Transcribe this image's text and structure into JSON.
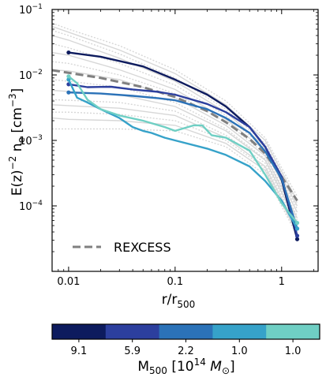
{
  "chart_data": {
    "type": "line",
    "xscale": "log",
    "yscale": "log",
    "xlim": [
      0.007,
      2.2
    ],
    "ylim": [
      1e-05,
      0.1
    ],
    "grid": false,
    "xlabel": {
      "base": "r/r",
      "sub": "500"
    },
    "ylabel": {
      "pre": "E(z)",
      "sup1": "−2",
      "mid": " n",
      "sub": "e",
      "post": " [cm",
      "sup2": "−3",
      "end": "]"
    },
    "xticks": [
      {
        "value": 0.01,
        "label": "0.01"
      },
      {
        "value": 0.1,
        "label": "0.1"
      },
      {
        "value": 1,
        "label": "1"
      }
    ],
    "yticks": [
      {
        "value": 0.1,
        "base": "10",
        "exp": "−1"
      },
      {
        "value": 0.01,
        "base": "10",
        "exp": "−2"
      },
      {
        "value": 0.001,
        "base": "10",
        "exp": "−3"
      },
      {
        "value": 0.0001,
        "base": "10",
        "exp": "−4"
      }
    ],
    "legend": {
      "label": "REXCESS",
      "position": "lower-left",
      "color": "#808080"
    },
    "reference_mean": {
      "color": "#808080",
      "points": [
        [
          0.007,
          0.0118
        ],
        [
          0.02,
          0.009
        ],
        [
          0.05,
          0.0065
        ],
        [
          0.1,
          0.0046
        ],
        [
          0.2,
          0.0028
        ],
        [
          0.3,
          0.0019
        ],
        [
          0.5,
          0.00105
        ],
        [
          0.7,
          0.00063
        ],
        [
          1.0,
          0.00028
        ],
        [
          1.4,
          0.00012
        ]
      ]
    },
    "rexcess_clusters": {
      "color": "#d3d3d3",
      "curves": [
        [
          [
            0.007,
            0.062
          ],
          [
            0.01,
            0.05
          ],
          [
            0.03,
            0.028
          ],
          [
            0.1,
            0.012
          ],
          [
            0.3,
            0.004
          ],
          [
            0.7,
            0.0011
          ],
          [
            1.4,
            0.00014
          ]
        ],
        [
          [
            0.007,
            0.055
          ],
          [
            0.01,
            0.045
          ],
          [
            0.03,
            0.024
          ],
          [
            0.1,
            0.0105
          ],
          [
            0.3,
            0.0035
          ],
          [
            0.7,
            0.001
          ],
          [
            1.4,
            0.00012
          ]
        ],
        [
          [
            0.007,
            0.048
          ],
          [
            0.01,
            0.04
          ],
          [
            0.03,
            0.021
          ],
          [
            0.1,
            0.009
          ],
          [
            0.3,
            0.003
          ],
          [
            0.7,
            0.0009
          ],
          [
            1.4,
            0.00011
          ]
        ],
        [
          [
            0.007,
            0.04
          ],
          [
            0.01,
            0.034
          ],
          [
            0.03,
            0.018
          ],
          [
            0.1,
            0.008
          ],
          [
            0.3,
            0.0027
          ],
          [
            0.7,
            0.0008
          ],
          [
            1.4,
            0.0001
          ]
        ],
        [
          [
            0.007,
            0.03
          ],
          [
            0.01,
            0.026
          ],
          [
            0.03,
            0.015
          ],
          [
            0.1,
            0.007
          ],
          [
            0.3,
            0.0024
          ],
          [
            0.7,
            0.00075
          ],
          [
            1.4,
            9e-05
          ]
        ],
        [
          [
            0.007,
            0.022
          ],
          [
            0.01,
            0.02
          ],
          [
            0.03,
            0.012
          ],
          [
            0.1,
            0.006
          ],
          [
            0.3,
            0.0021
          ],
          [
            0.7,
            0.0007
          ],
          [
            1.4,
            8e-05
          ]
        ],
        [
          [
            0.007,
            0.016
          ],
          [
            0.01,
            0.015
          ],
          [
            0.03,
            0.01
          ],
          [
            0.1,
            0.0052
          ],
          [
            0.3,
            0.0019
          ],
          [
            0.7,
            0.00062
          ],
          [
            1.4,
            7e-05
          ]
        ],
        [
          [
            0.007,
            0.012
          ],
          [
            0.01,
            0.0115
          ],
          [
            0.03,
            0.0085
          ],
          [
            0.1,
            0.0045
          ],
          [
            0.3,
            0.0017
          ],
          [
            0.7,
            0.00058
          ],
          [
            1.4,
            6.5e-05
          ]
        ],
        [
          [
            0.007,
            0.0085
          ],
          [
            0.01,
            0.008
          ],
          [
            0.03,
            0.0065
          ],
          [
            0.1,
            0.0038
          ],
          [
            0.3,
            0.0015
          ],
          [
            0.7,
            0.00052
          ],
          [
            1.4,
            6e-05
          ]
        ],
        [
          [
            0.007,
            0.0058
          ],
          [
            0.01,
            0.0056
          ],
          [
            0.03,
            0.005
          ],
          [
            0.1,
            0.0033
          ],
          [
            0.3,
            0.0014
          ],
          [
            0.7,
            0.0005
          ],
          [
            1.4,
            5.5e-05
          ]
        ],
        [
          [
            0.007,
            0.0042
          ],
          [
            0.01,
            0.0041
          ],
          [
            0.03,
            0.0038
          ],
          [
            0.1,
            0.0028
          ],
          [
            0.3,
            0.0012
          ],
          [
            0.7,
            0.00045
          ],
          [
            1.4,
            5e-05
          ]
        ],
        [
          [
            0.007,
            0.0035
          ],
          [
            0.01,
            0.0034
          ],
          [
            0.03,
            0.0031
          ],
          [
            0.1,
            0.0024
          ],
          [
            0.3,
            0.0011
          ],
          [
            0.7,
            0.0004
          ],
          [
            1.4,
            4.5e-05
          ]
        ],
        [
          [
            0.007,
            0.0027
          ],
          [
            0.01,
            0.0027
          ],
          [
            0.03,
            0.0025
          ],
          [
            0.1,
            0.002
          ],
          [
            0.3,
            0.001
          ],
          [
            0.7,
            0.00038
          ],
          [
            1.4,
            4e-05
          ]
        ],
        [
          [
            0.007,
            0.0022
          ],
          [
            0.01,
            0.0021
          ],
          [
            0.03,
            0.002
          ],
          [
            0.1,
            0.0017
          ],
          [
            0.3,
            0.0009
          ],
          [
            0.7,
            0.00035
          ],
          [
            1.4,
            3.8e-05
          ]
        ],
        [
          [
            0.007,
            0.0015
          ],
          [
            0.01,
            0.0015
          ],
          [
            0.03,
            0.0015
          ],
          [
            0.1,
            0.0014
          ],
          [
            0.3,
            0.0008
          ],
          [
            0.7,
            0.0003
          ],
          [
            1.4,
            3.5e-05
          ]
        ]
      ]
    },
    "series": [
      {
        "mass": "9.1",
        "color": "#0d1b5e",
        "points": [
          [
            0.01,
            0.022
          ],
          [
            0.02,
            0.019
          ],
          [
            0.05,
            0.0135
          ],
          [
            0.1,
            0.0085
          ],
          [
            0.2,
            0.005
          ],
          [
            0.3,
            0.0033
          ],
          [
            0.5,
            0.0016
          ],
          [
            0.7,
            0.0008
          ],
          [
            1.0,
            0.00025
          ],
          [
            1.4,
            3.1e-05
          ]
        ]
      },
      {
        "mass": "5.9",
        "color": "#2c3f9e",
        "points": [
          [
            0.01,
            0.0072
          ],
          [
            0.015,
            0.0065
          ],
          [
            0.025,
            0.0066
          ],
          [
            0.04,
            0.006
          ],
          [
            0.07,
            0.0055
          ],
          [
            0.1,
            0.005
          ],
          [
            0.2,
            0.0036
          ],
          [
            0.3,
            0.0027
          ],
          [
            0.5,
            0.0016
          ],
          [
            0.7,
            0.0008
          ],
          [
            1.0,
            0.00028
          ],
          [
            1.4,
            3.5e-05
          ]
        ]
      },
      {
        "mass": "2.2",
        "color": "#2b72b8",
        "points": [
          [
            0.01,
            0.0054
          ],
          [
            0.02,
            0.0052
          ],
          [
            0.04,
            0.0048
          ],
          [
            0.07,
            0.0044
          ],
          [
            0.1,
            0.0041
          ],
          [
            0.2,
            0.003
          ],
          [
            0.3,
            0.0022
          ],
          [
            0.5,
            0.0013
          ],
          [
            0.7,
            0.00068
          ],
          [
            1.0,
            0.00026
          ],
          [
            1.4,
            4.5e-05
          ]
        ]
      },
      {
        "mass": "1.0",
        "color": "#36a2c9",
        "points": [
          [
            0.01,
            0.0085
          ],
          [
            0.012,
            0.0045
          ],
          [
            0.015,
            0.0038
          ],
          [
            0.02,
            0.003
          ],
          [
            0.03,
            0.0022
          ],
          [
            0.04,
            0.0016
          ],
          [
            0.05,
            0.0014
          ],
          [
            0.06,
            0.0013
          ],
          [
            0.08,
            0.0011
          ],
          [
            0.1,
            0.001
          ],
          [
            0.2,
            0.00075
          ],
          [
            0.3,
            0.0006
          ],
          [
            0.5,
            0.0004
          ],
          [
            0.7,
            0.00024
          ],
          [
            1.0,
            0.00012
          ],
          [
            1.4,
            4.5e-05
          ]
        ]
      },
      {
        "mass": "1.0",
        "color": "#6fcfc4",
        "points": [
          [
            0.01,
            0.0095
          ],
          [
            0.012,
            0.0075
          ],
          [
            0.015,
            0.0042
          ],
          [
            0.02,
            0.003
          ],
          [
            0.03,
            0.0024
          ],
          [
            0.05,
            0.002
          ],
          [
            0.08,
            0.0016
          ],
          [
            0.1,
            0.0014
          ],
          [
            0.15,
            0.0017
          ],
          [
            0.18,
            0.0017
          ],
          [
            0.22,
            0.0012
          ],
          [
            0.3,
            0.0011
          ],
          [
            0.5,
            0.0007
          ],
          [
            0.7,
            0.0003
          ],
          [
            1.0,
            0.00011
          ],
          [
            1.4,
            5.5e-05
          ]
        ]
      }
    ],
    "colorbar": {
      "label": {
        "base": "M",
        "sub": "500",
        "pre_units": " [10",
        "sup": "14",
        "unit": " M",
        "unit_sub": "⊙",
        "end": "]"
      },
      "ticks": [
        "9.1",
        "5.9",
        "2.2",
        "1.0",
        "1.0"
      ],
      "colors": [
        "#0d1b5e",
        "#2c3f9e",
        "#2b72b8",
        "#36a2c9",
        "#6fcfc4"
      ]
    }
  }
}
